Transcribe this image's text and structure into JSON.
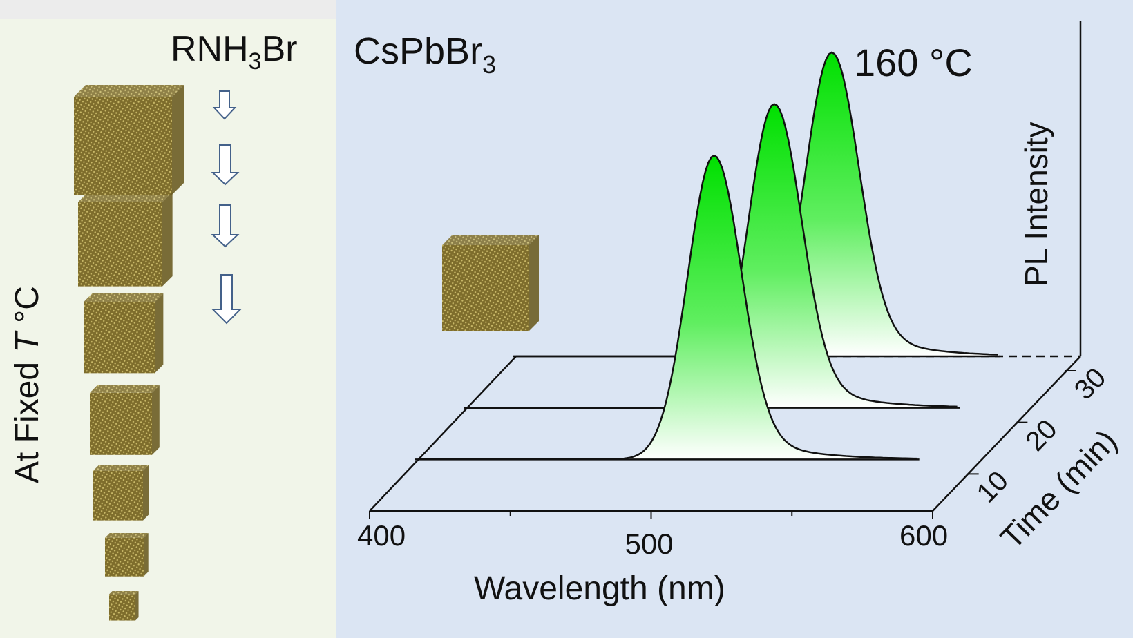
{
  "left_panel": {
    "reagent_main": "RNH",
    "reagent_sub": "3",
    "reagent_tail": "Br",
    "vertical_label_prefix": "At Fixed ",
    "vertical_label_var": "T",
    "vertical_label_unit": " °C"
  },
  "right_panel": {
    "compound_main": "CsPbBr",
    "compound_sub": "3",
    "temperature": "160 °C"
  },
  "chart_data": {
    "type": "line",
    "view": "3d-waterfall",
    "xlabel": "Wavelength (nm)",
    "ylabel": "PL Intensity",
    "zlabel": "Time (min)",
    "x_ticks": [
      "400",
      "500",
      "600"
    ],
    "z_ticks": [
      "10",
      "20",
      "30"
    ],
    "xlim": [
      400,
      600
    ],
    "series": [
      {
        "time": 10,
        "peak_nm": 505,
        "fwhm_nm": 22
      },
      {
        "time": 20,
        "peak_nm": 512,
        "fwhm_nm": 22
      },
      {
        "time": 30,
        "peak_nm": 518,
        "fwhm_nm": 22
      }
    ],
    "colors": {
      "peak_fill": "#00e000",
      "peak_fill_light": "#ffffff",
      "axis": "#111111"
    }
  }
}
